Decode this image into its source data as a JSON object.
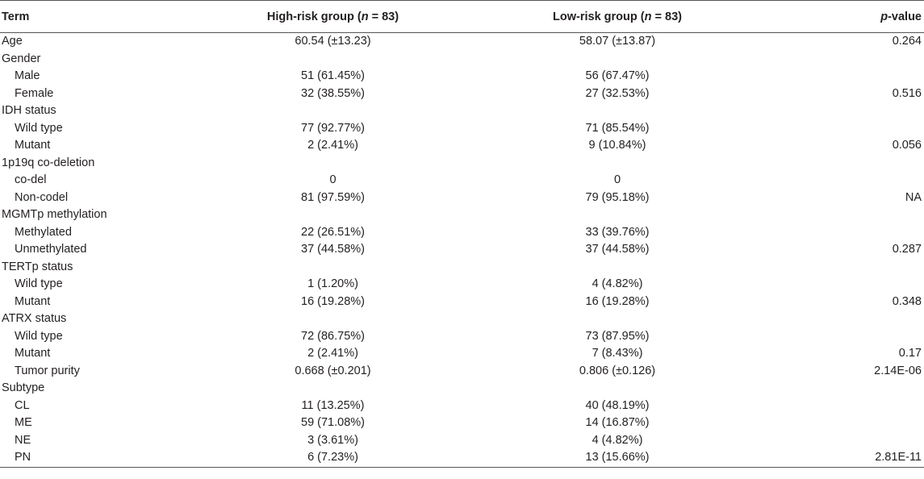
{
  "header": {
    "term": "Term",
    "high_prefix": "High-risk group (",
    "high_n": "n",
    "high_suffix": " = 83)",
    "low_prefix": "Low-risk group (",
    "low_n": "n",
    "low_suffix": " = 83)",
    "p_italic": "p",
    "p_suffix": "-value"
  },
  "rows": [
    {
      "term": "Age",
      "indent": false,
      "high": "60.54 (±13.23)",
      "low": "58.07 (±13.87)",
      "p": "0.264"
    },
    {
      "term": "Gender",
      "indent": false,
      "high": "",
      "low": "",
      "p": ""
    },
    {
      "term": "Male",
      "indent": true,
      "high": "51 (61.45%)",
      "low": "56 (67.47%)",
      "p": ""
    },
    {
      "term": "Female",
      "indent": true,
      "high": "32 (38.55%)",
      "low": "27 (32.53%)",
      "p": "0.516"
    },
    {
      "term": "IDH status",
      "indent": false,
      "high": "",
      "low": "",
      "p": ""
    },
    {
      "term": "Wild type",
      "indent": true,
      "high": "77 (92.77%)",
      "low": "71 (85.54%)",
      "p": ""
    },
    {
      "term": "Mutant",
      "indent": true,
      "high": "2 (2.41%)",
      "low": "9 (10.84%)",
      "p": "0.056"
    },
    {
      "term": "1p19q co-deletion",
      "indent": false,
      "high": "",
      "low": "",
      "p": ""
    },
    {
      "term": "co-del",
      "indent": true,
      "high": "0",
      "low": "0",
      "p": ""
    },
    {
      "term": "Non-codel",
      "indent": true,
      "high": "81 (97.59%)",
      "low": "79 (95.18%)",
      "p": "NA"
    },
    {
      "term": "MGMTp methylation",
      "indent": false,
      "high": "",
      "low": "",
      "p": ""
    },
    {
      "term": "Methylated",
      "indent": true,
      "high": "22 (26.51%)",
      "low": "33 (39.76%)",
      "p": ""
    },
    {
      "term": "Unmethylated",
      "indent": true,
      "high": "37 (44.58%)",
      "low": "37 (44.58%)",
      "p": "0.287"
    },
    {
      "term": "TERTp status",
      "indent": false,
      "high": "",
      "low": "",
      "p": ""
    },
    {
      "term": "Wild type",
      "indent": true,
      "high": "1 (1.20%)",
      "low": "4 (4.82%)",
      "p": ""
    },
    {
      "term": "Mutant",
      "indent": true,
      "high": "16 (19.28%)",
      "low": "16 (19.28%)",
      "p": "0.348"
    },
    {
      "term": "ATRX status",
      "indent": false,
      "high": "",
      "low": "",
      "p": ""
    },
    {
      "term": "Wild type",
      "indent": true,
      "high": "72 (86.75%)",
      "low": "73 (87.95%)",
      "p": ""
    },
    {
      "term": "Mutant",
      "indent": true,
      "high": "2 (2.41%)",
      "low": "7 (8.43%)",
      "p": "0.17"
    },
    {
      "term": "Tumor purity",
      "indent": true,
      "high": "0.668 (±0.201)",
      "low": "0.806 (±0.126)",
      "p": "2.14E-06"
    },
    {
      "term": "Subtype",
      "indent": false,
      "high": "",
      "low": "",
      "p": ""
    },
    {
      "term": "CL",
      "indent": true,
      "high": "11 (13.25%)",
      "low": "40 (48.19%)",
      "p": ""
    },
    {
      "term": "ME",
      "indent": true,
      "high": "59 (71.08%)",
      "low": "14 (16.87%)",
      "p": ""
    },
    {
      "term": "NE",
      "indent": true,
      "high": "3 (3.61%)",
      "low": "4 (4.82%)",
      "p": ""
    },
    {
      "term": "PN",
      "indent": true,
      "high": "6 (7.23%)",
      "low": "13 (15.66%)",
      "p": "2.81E-11"
    }
  ]
}
